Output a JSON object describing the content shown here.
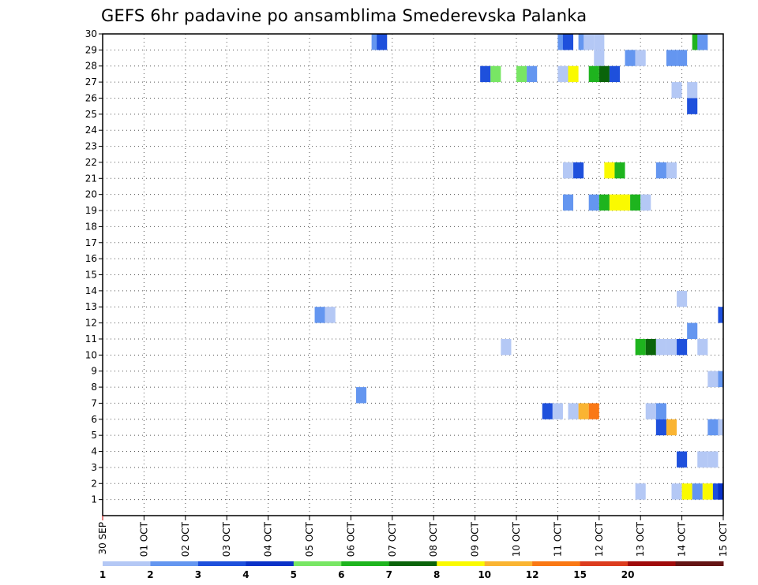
{
  "title": "GEFS 6hr padavine po ansamblima Smederevska Palanka",
  "chart_data": {
    "type": "heatmap",
    "title": "GEFS 6hr padavine po ansamblima Smederevska Palanka",
    "xlabel": "",
    "ylabel": "",
    "x_ticks": [
      "30 SEP",
      "01 OCT",
      "02 OCT",
      "03 OCT",
      "04 OCT",
      "05 OCT",
      "06 OCT",
      "07 OCT",
      "08 OCT",
      "09 OCT",
      "10 OCT",
      "11 OCT",
      "12 OCT",
      "13 OCT",
      "14 OCT",
      "15 OCT"
    ],
    "xlim": [
      0,
      60
    ],
    "y_ticks": [
      "1",
      "2",
      "3",
      "4",
      "5",
      "6",
      "7",
      "8",
      "9",
      "10",
      "11",
      "12",
      "13",
      "14",
      "15",
      "16",
      "17",
      "18",
      "19",
      "20",
      "21",
      "22",
      "23",
      "24",
      "25",
      "26",
      "27",
      "28",
      "29",
      "30"
    ],
    "ylim": [
      0,
      30
    ],
    "grid": true,
    "colorbar": {
      "labels": [
        "1",
        "2",
        "3",
        "4",
        "5",
        "6",
        "7",
        "8",
        "10",
        "12",
        "15",
        "20"
      ],
      "colors": [
        "#b4c8f5",
        "#6496f0",
        "#1e50dc",
        "#0a32c8",
        "#78e664",
        "#1eb41e",
        "#0a640a",
        "#fafa00",
        "#fab432",
        "#fa7814",
        "#dc3c1e",
        "#a00a0a",
        "#641414"
      ]
    },
    "cells": [
      {
        "x": 26.5,
        "y": 29,
        "c": 1
      },
      {
        "x": 27,
        "y": 29,
        "c": 2
      },
      {
        "x": 44.5,
        "y": 29,
        "c": 1
      },
      {
        "x": 45,
        "y": 29,
        "c": 2
      },
      {
        "x": 46.5,
        "y": 29,
        "c": 1
      },
      {
        "x": 47,
        "y": 29,
        "c": 0
      },
      {
        "x": 48,
        "y": 29,
        "c": 0
      },
      {
        "x": 57.5,
        "y": 29,
        "c": 5
      },
      {
        "x": 58,
        "y": 29,
        "c": 1
      },
      {
        "x": 48,
        "y": 28,
        "c": 0
      },
      {
        "x": 51,
        "y": 28,
        "c": 1
      },
      {
        "x": 52,
        "y": 28,
        "c": 0
      },
      {
        "x": 55,
        "y": 28,
        "c": 1
      },
      {
        "x": 56,
        "y": 28,
        "c": 1
      },
      {
        "x": 37,
        "y": 27,
        "c": 2
      },
      {
        "x": 38,
        "y": 27,
        "c": 4
      },
      {
        "x": 40.5,
        "y": 27,
        "c": 4
      },
      {
        "x": 41.5,
        "y": 27,
        "c": 1
      },
      {
        "x": 44.5,
        "y": 27,
        "c": 0
      },
      {
        "x": 45.5,
        "y": 27,
        "c": 7
      },
      {
        "x": 47.5,
        "y": 27,
        "c": 5
      },
      {
        "x": 48.5,
        "y": 27,
        "c": 6
      },
      {
        "x": 49.5,
        "y": 27,
        "c": 2
      },
      {
        "x": 55.5,
        "y": 26,
        "c": 0
      },
      {
        "x": 57,
        "y": 26,
        "c": 0
      },
      {
        "x": 57,
        "y": 25,
        "c": 2
      },
      {
        "x": 45,
        "y": 21,
        "c": 0
      },
      {
        "x": 46,
        "y": 21,
        "c": 2
      },
      {
        "x": 49,
        "y": 21,
        "c": 7
      },
      {
        "x": 50,
        "y": 21,
        "c": 5
      },
      {
        "x": 54,
        "y": 21,
        "c": 1
      },
      {
        "x": 55,
        "y": 21,
        "c": 0
      },
      {
        "x": 45,
        "y": 19,
        "c": 1
      },
      {
        "x": 47.5,
        "y": 19,
        "c": 1
      },
      {
        "x": 48.5,
        "y": 19,
        "c": 5
      },
      {
        "x": 49.5,
        "y": 19,
        "c": 7
      },
      {
        "x": 50.5,
        "y": 19,
        "c": 7
      },
      {
        "x": 51.5,
        "y": 19,
        "c": 5
      },
      {
        "x": 52.5,
        "y": 19,
        "c": 0
      },
      {
        "x": 56,
        "y": 13,
        "c": 0
      },
      {
        "x": 21,
        "y": 12,
        "c": 1
      },
      {
        "x": 22,
        "y": 12,
        "c": 0
      },
      {
        "x": 60,
        "y": 12,
        "c": 2
      },
      {
        "x": 57,
        "y": 11,
        "c": 1
      },
      {
        "x": 39,
        "y": 10,
        "c": 0
      },
      {
        "x": 52,
        "y": 10,
        "c": 5
      },
      {
        "x": 53,
        "y": 10,
        "c": 6
      },
      {
        "x": 54,
        "y": 10,
        "c": 0
      },
      {
        "x": 55,
        "y": 10,
        "c": 0
      },
      {
        "x": 56,
        "y": 10,
        "c": 2
      },
      {
        "x": 58,
        "y": 10,
        "c": 0
      },
      {
        "x": 59,
        "y": 8,
        "c": 0
      },
      {
        "x": 60,
        "y": 8,
        "c": 1
      },
      {
        "x": 25,
        "y": 7,
        "c": 1
      },
      {
        "x": 43,
        "y": 6,
        "c": 2
      },
      {
        "x": 44,
        "y": 6,
        "c": 0
      },
      {
        "x": 45.5,
        "y": 6,
        "c": 0
      },
      {
        "x": 46.5,
        "y": 6,
        "c": 8
      },
      {
        "x": 47.5,
        "y": 6,
        "c": 9
      },
      {
        "x": 53,
        "y": 6,
        "c": 0
      },
      {
        "x": 54,
        "y": 6,
        "c": 1
      },
      {
        "x": 54,
        "y": 5,
        "c": 2
      },
      {
        "x": 55,
        "y": 5,
        "c": 8
      },
      {
        "x": 59,
        "y": 5,
        "c": 1
      },
      {
        "x": 60,
        "y": 5,
        "c": 0
      },
      {
        "x": 56,
        "y": 3,
        "c": 2
      },
      {
        "x": 58,
        "y": 3,
        "c": 0
      },
      {
        "x": 59,
        "y": 3,
        "c": 0
      },
      {
        "x": 52,
        "y": 1,
        "c": 0
      },
      {
        "x": 55.5,
        "y": 1,
        "c": 0
      },
      {
        "x": 56.5,
        "y": 1,
        "c": 7
      },
      {
        "x": 57.5,
        "y": 1,
        "c": 1
      },
      {
        "x": 58.5,
        "y": 1,
        "c": 7
      },
      {
        "x": 59.5,
        "y": 1,
        "c": 2
      },
      {
        "x": 60,
        "y": 1,
        "c": 3
      }
    ]
  }
}
